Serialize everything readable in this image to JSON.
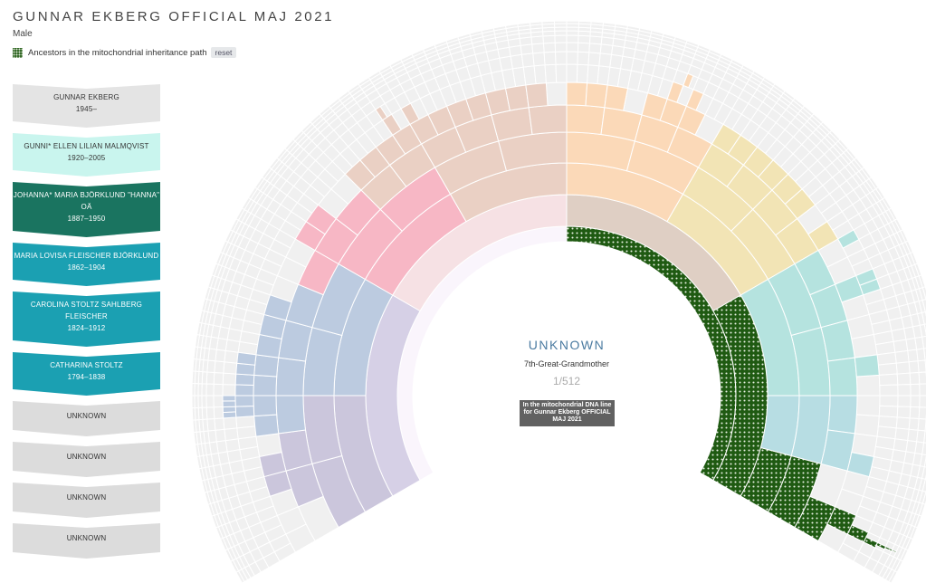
{
  "header": {
    "title": "GUNNAR EKBERG OFFICIAL MAJ 2021",
    "gender": "Male"
  },
  "legend": {
    "label": "Ancestors in the mitochondrial inheritance path",
    "reset_label": "reset"
  },
  "lineage": [
    {
      "name": "GUNNAR EKBERG",
      "dates": "1945–",
      "bg": "#e4e4e4",
      "fg": "#333333"
    },
    {
      "name": "GUNNI* ELLEN LILIAN MALMQVIST",
      "dates": "1920–2005",
      "bg": "#c9f5ee",
      "fg": "#333333"
    },
    {
      "name": "JOHANNA* MARIA BJÖRKLUND \"HANNA\" OÄ",
      "dates": "1887–1950",
      "bg": "#1a7460",
      "fg": "#ffffff"
    },
    {
      "name": "MARIA LOVISA FLEISCHER BJÖRKLUND",
      "dates": "1862–1904",
      "bg": "#1ba0b2",
      "fg": "#ffffff"
    },
    {
      "name": "CAROLINA STOLTZ SAHLBERG FLEISCHER",
      "dates": "1824–1912",
      "bg": "#1ba0b2",
      "fg": "#ffffff"
    },
    {
      "name": "CATHARINA STOLTZ",
      "dates": "1794–1838",
      "bg": "#1ba0b2",
      "fg": "#ffffff"
    },
    {
      "name": "UNKNOWN",
      "dates": "",
      "bg": "#dcdcdc",
      "fg": "#333333"
    },
    {
      "name": "UNKNOWN",
      "dates": "",
      "bg": "#dcdcdc",
      "fg": "#333333"
    },
    {
      "name": "UNKNOWN",
      "dates": "",
      "bg": "#dcdcdc",
      "fg": "#333333"
    },
    {
      "name": "UNKNOWN",
      "dates": "",
      "bg": "#dcdcdc",
      "fg": "#333333"
    }
  ],
  "selected": {
    "name": "UNKNOWN",
    "relation": "7th-Great-Grandmother",
    "fraction": "1/512",
    "note": "In the mitochondrial DNA line for Gunnar Ekberg OFFICIAL MAJ 2021"
  },
  "colors": {
    "mito_path": "#1f5a12",
    "paternal_paternal": "#ead0c4",
    "paternal_maternal": "#f7b7c5",
    "paternal_paternal_outer": "#bccbe0",
    "paternal_inner": "#d6d0e6",
    "maternal_paternal": "#fbd9b8",
    "maternal_paternal_2": "#f2e4b5",
    "maternal_maternal": "#b5e3df",
    "empty": "#f0f0f0"
  }
}
